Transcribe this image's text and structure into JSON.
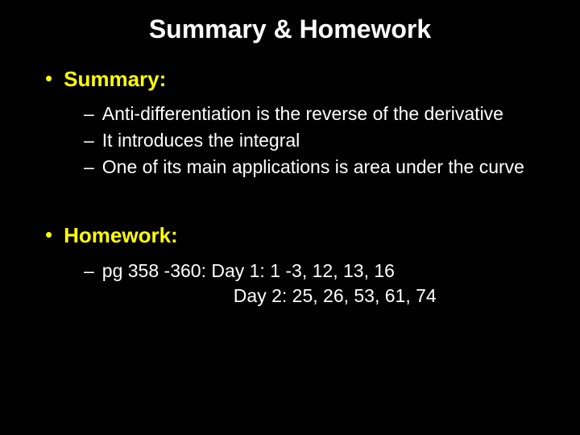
{
  "slide": {
    "title": "Summary & Homework",
    "background_color": "#000000",
    "title_color": "#ffffff",
    "heading_color": "#ffff00",
    "body_color": "#ffffff",
    "title_fontsize": 32,
    "heading_fontsize": 26,
    "body_fontsize": 23,
    "sections": [
      {
        "label": "Summary:",
        "items": [
          "Anti-differentiation is the reverse of the derivative",
          "It introduces the integral",
          "One of its main applications is area under the curve"
        ]
      },
      {
        "label": "Homework:",
        "items_multiline": [
          {
            "line1": "pg 358 -360: Day 1:  1 -3, 12, 13, 16",
            "line2": "Day 2:  25, 26, 53, 61, 74"
          }
        ]
      }
    ]
  }
}
